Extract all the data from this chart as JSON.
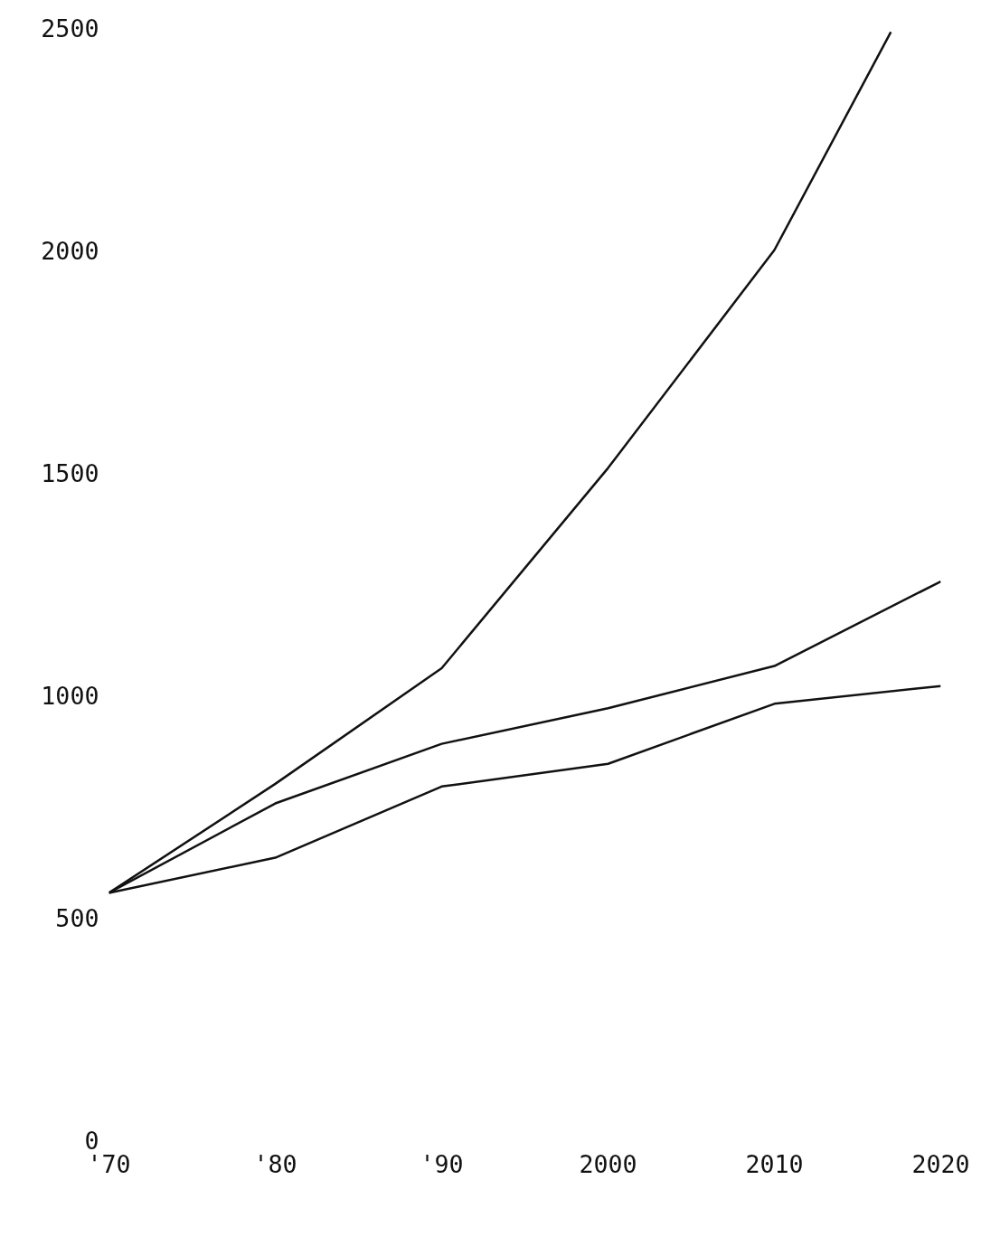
{
  "chart_data": {
    "type": "line",
    "grid": false,
    "marker": "none",
    "line_style": "solid",
    "xlim": [
      1970,
      2020
    ],
    "ylim": [
      0,
      2500
    ],
    "xticks": [
      {
        "value": 1970,
        "label": "'70"
      },
      {
        "value": 1980,
        "label": "'80"
      },
      {
        "value": 1990,
        "label": "'90"
      },
      2000,
      2010,
      2020
    ],
    "yticks": [
      0,
      500,
      1000,
      1500,
      2000,
      2500
    ],
    "series": [
      {
        "color": "#111111",
        "x": [
          1970,
          1980,
          1990,
          2000,
          2010,
          2017
        ],
        "values": [
          555,
          800,
          1060,
          1510,
          2000,
          2490
        ]
      },
      {
        "color": "#111111",
        "x": [
          1970,
          1980,
          1990,
          2000,
          2010,
          2020
        ],
        "values": [
          555,
          756,
          890,
          970,
          1065,
          1255
        ]
      },
      {
        "color": "#111111",
        "x": [
          1970,
          1980,
          1990,
          2000,
          2010,
          2020
        ],
        "values": [
          555,
          634,
          794,
          845,
          980,
          1020
        ]
      }
    ]
  }
}
